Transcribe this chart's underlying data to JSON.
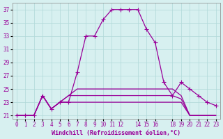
{
  "xlabel": "Windchill (Refroidissement éolien,°C)",
  "bg_color": "#d7f0f0",
  "grid_color": "#b0d8d8",
  "line_color": "#990099",
  "ylim": [
    20.5,
    38
  ],
  "xlim": [
    -0.5,
    23.5
  ],
  "y_ticks": [
    21,
    23,
    25,
    27,
    29,
    31,
    33,
    35,
    37
  ],
  "x_tick_positions": [
    0,
    1,
    2,
    3,
    4,
    5,
    6,
    7,
    8,
    9,
    10,
    11,
    12,
    14,
    15,
    16,
    18,
    19,
    20,
    21,
    22,
    23
  ],
  "x_tick_labels": [
    "0",
    "1",
    "2",
    "3",
    "4",
    "5",
    "6",
    "7",
    "8",
    "9",
    "10",
    "11",
    "12",
    "14",
    "15",
    "16",
    "18",
    "19",
    "20",
    "21",
    "22",
    "23"
  ],
  "series1": [
    21,
    21,
    21,
    24,
    22,
    23,
    23,
    27.5,
    33,
    33,
    35.5,
    37,
    37,
    37,
    37,
    34,
    32,
    26,
    24,
    26,
    25,
    24,
    23,
    22.5
  ],
  "series2": [
    21,
    21,
    21,
    24,
    22,
    23,
    24,
    25,
    25,
    25,
    25,
    25,
    25,
    25,
    25,
    25,
    25,
    25,
    25,
    24,
    21,
    21,
    21,
    21
  ],
  "series3": [
    21,
    21,
    21,
    24,
    22,
    23,
    24,
    24,
    24,
    24,
    24,
    24,
    24,
    24,
    24,
    24,
    24,
    24,
    24,
    23.5,
    21,
    21,
    21,
    21
  ],
  "series4": [
    21,
    21,
    21,
    24,
    22,
    23,
    23,
    23,
    23,
    23,
    23,
    23,
    23,
    23,
    23,
    23,
    23,
    23,
    23,
    23,
    21,
    21,
    21,
    21
  ]
}
